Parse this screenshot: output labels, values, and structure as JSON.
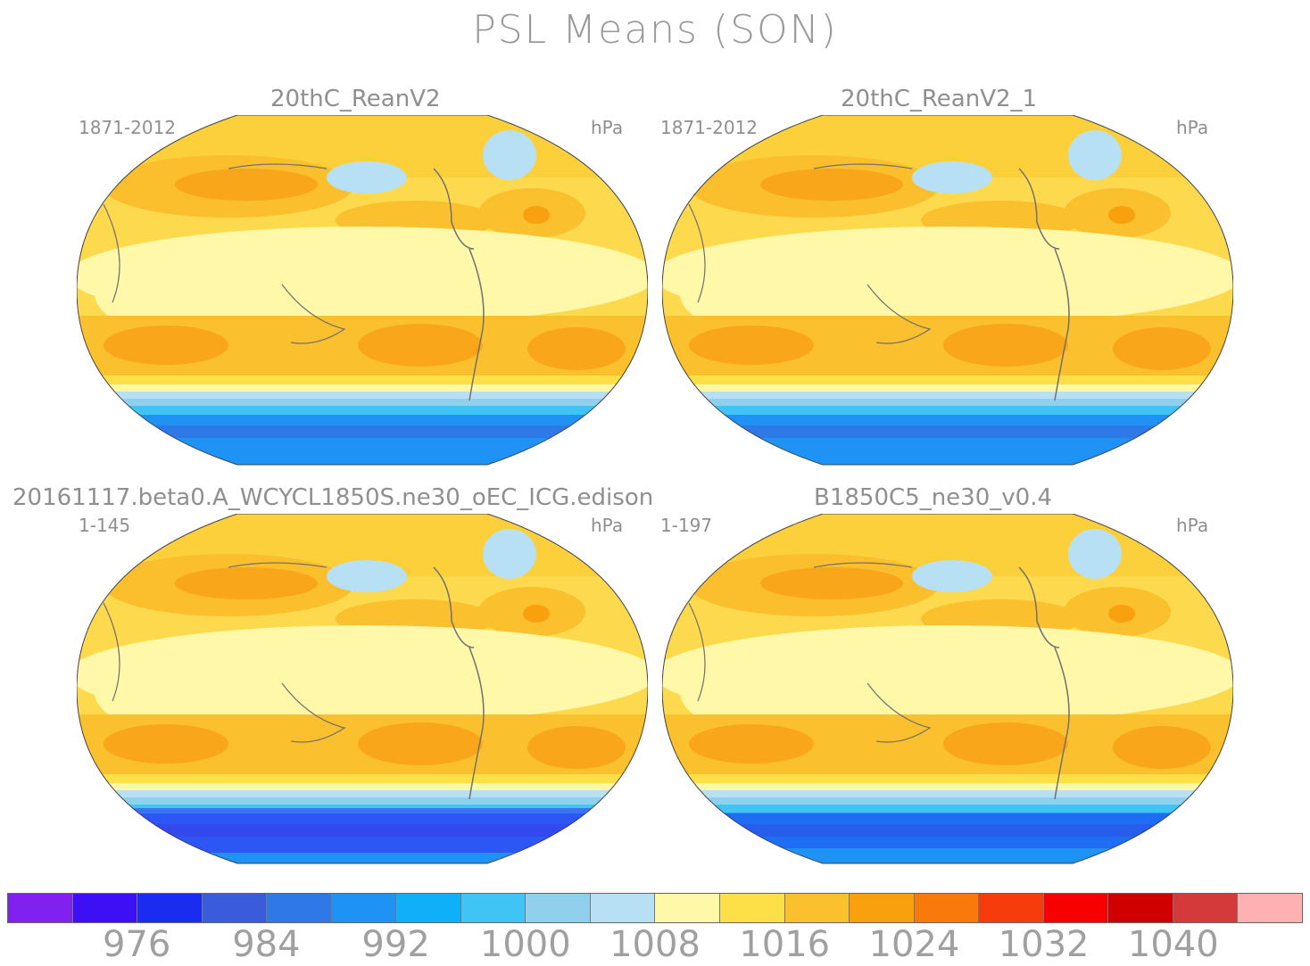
{
  "title": "PSL Means (SON)",
  "panels": [
    {
      "name": "20thC_ReanV2",
      "period": "1871-2012",
      "units": "hPa"
    },
    {
      "name": "20thC_ReanV2_1",
      "period": "1871-2012",
      "units": "hPa"
    },
    {
      "name": "20161117.beta0.A_WCYCL1850S.ne30_oEC_ICG.edison",
      "period": "1-145",
      "units": "hPa"
    },
    {
      "name": "B1850C5_ne30_v0.4",
      "period": "1-197",
      "units": "hPa"
    }
  ],
  "colorbar": {
    "colors": [
      "#8021f0",
      "#3c0ff5",
      "#1a2cf0",
      "#3a5cdc",
      "#2f78e8",
      "#1f92f5",
      "#10b0f8",
      "#40c4f5",
      "#90d0ec",
      "#b8e0f4",
      "#fef8a8",
      "#fde047",
      "#fbc02d",
      "#f9a00f",
      "#f97a0a",
      "#f83b0a",
      "#f80000",
      "#d00000",
      "#d43a3a",
      "#ffb0b0"
    ],
    "labels": [
      "976",
      "984",
      "992",
      "1000",
      "1008",
      "1016",
      "1024",
      "1032",
      "1040"
    ]
  }
}
